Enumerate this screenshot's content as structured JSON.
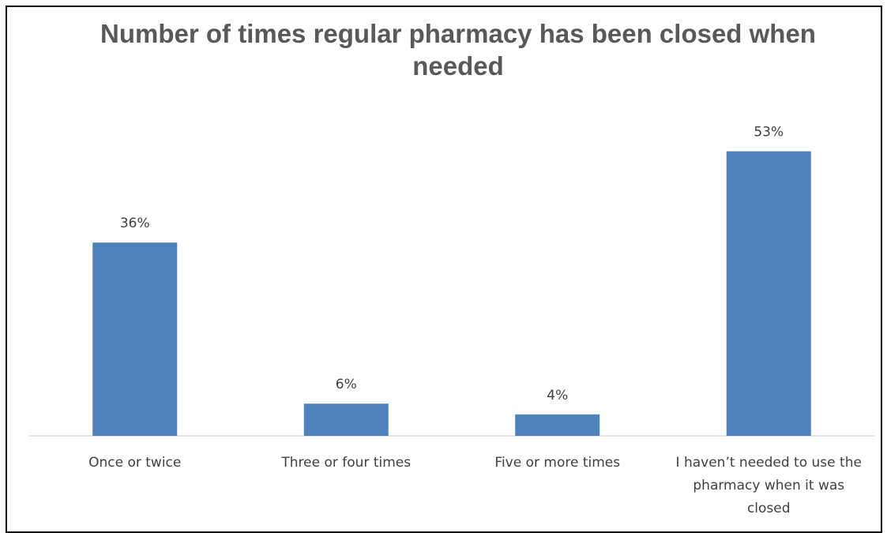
{
  "chart_data": {
    "type": "bar",
    "title": "Number of times regular pharmacy has been closed when needed",
    "categories": [
      [
        "Once or twice"
      ],
      [
        "Three or four times"
      ],
      [
        "Five or more times"
      ],
      [
        "I haven’t needed to use the",
        "pharmacy when it was",
        "closed"
      ]
    ],
    "values": [
      36,
      6,
      4,
      53
    ],
    "data_labels": [
      "36%",
      "6%",
      "4%",
      "53%"
    ],
    "value_unit": "%",
    "ylim": [
      0,
      60
    ],
    "bar_color": "#4F81BD",
    "grid": false,
    "legend": "none"
  }
}
